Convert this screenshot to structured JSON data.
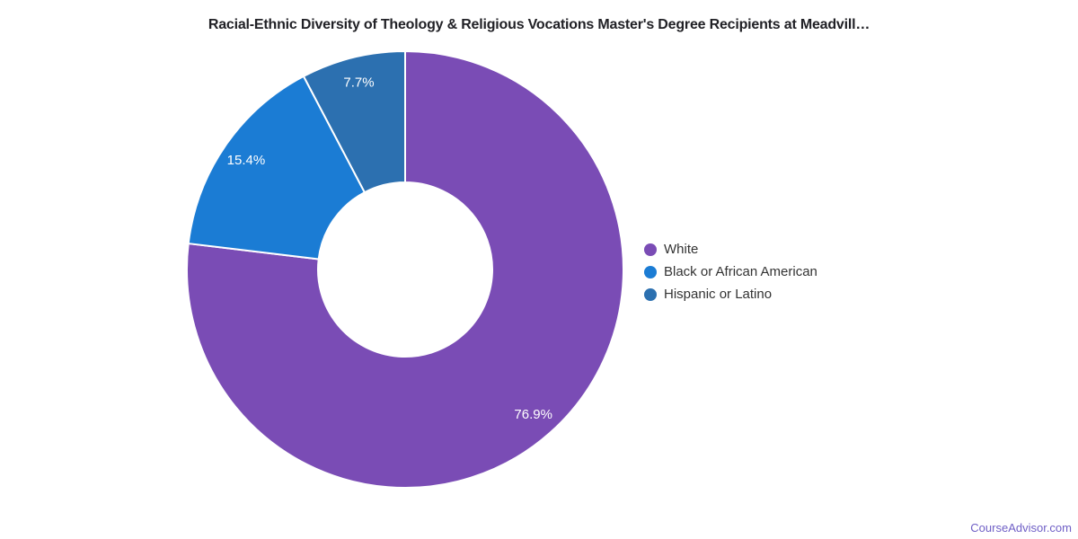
{
  "chart_data": {
    "type": "pie",
    "subtype": "donut",
    "title": "Racial-Ethnic Diversity of Theology & Religious Vocations Master's Degree Recipients at Meadvill…",
    "series": [
      {
        "name": "White",
        "value": 76.9,
        "label": "76.9%",
        "color": "#7A4CB5"
      },
      {
        "name": "Black or African American",
        "value": 15.4,
        "label": "15.4%",
        "color": "#1B7CD4"
      },
      {
        "name": "Hispanic or Latino",
        "value": 7.7,
        "label": "7.7%",
        "color": "#2C70B0"
      }
    ],
    "unit": "percent",
    "start_angle_deg": 0,
    "direction": "clockwise",
    "inner_radius_ratio": 0.4,
    "legend_position": "right",
    "slice_label_color": "#ffffff",
    "slice_border_color": "#ffffff",
    "title_color": "#212126",
    "legend_text_color": "#333333"
  },
  "footer": {
    "watermark": "CourseAdvisor.com",
    "color": "#6F5FC6"
  }
}
